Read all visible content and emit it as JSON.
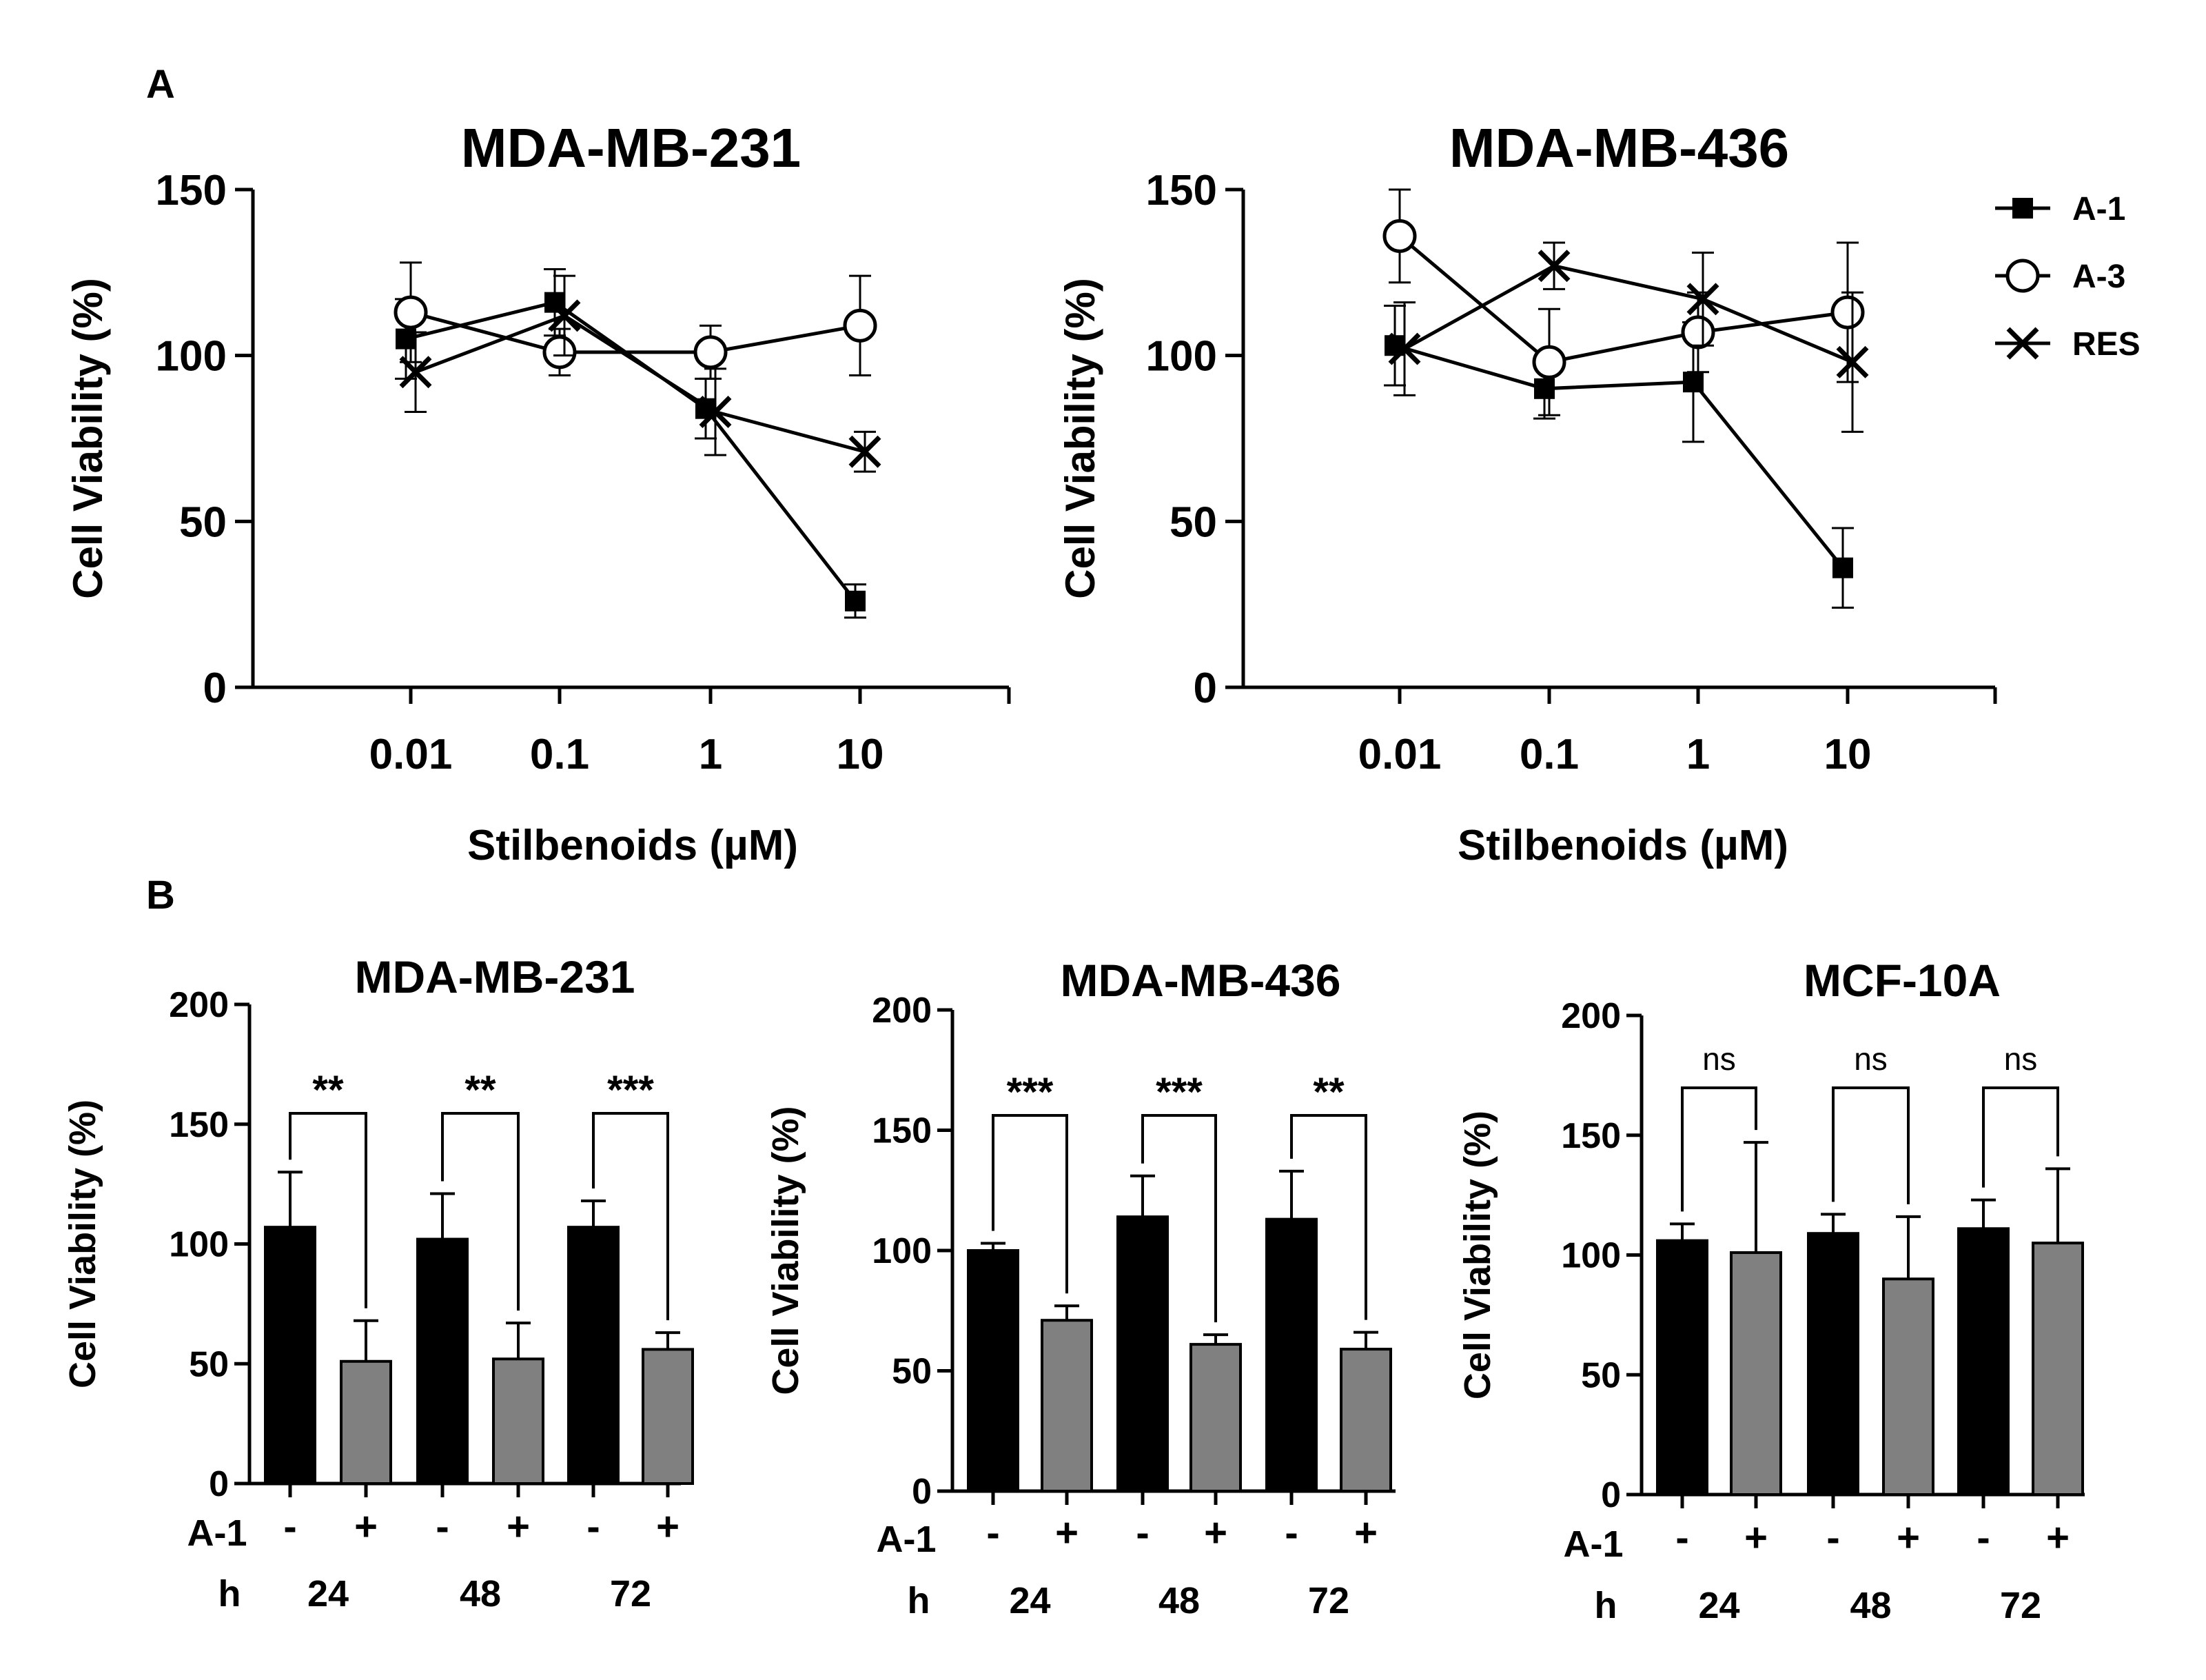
{
  "figure": {
    "panel_labels": [
      "A",
      "B"
    ]
  },
  "colors": {
    "black": "#000000",
    "gray": "#808080",
    "white": "#ffffff"
  },
  "chart_data": [
    {
      "type": "line",
      "panel": "A",
      "title": "MDA-MB-231",
      "xlabel": "Stilbenoids (µM)",
      "ylabel": "Cell Viability (%)",
      "x_scale": "log",
      "categories": [
        "0.01",
        "0.1",
        "1",
        "10"
      ],
      "ylim": [
        0,
        150
      ],
      "yticks": [
        0,
        50,
        100,
        150
      ],
      "series": [
        {
          "name": "A-1",
          "marker": "square",
          "values": [
            105,
            116,
            84,
            26
          ],
          "errors": [
            12,
            10,
            9,
            5
          ]
        },
        {
          "name": "A-3",
          "marker": "circle",
          "values": [
            113,
            101,
            101,
            109
          ],
          "errors": [
            15,
            7,
            8,
            15
          ]
        },
        {
          "name": "RES",
          "marker": "x",
          "values": [
            95,
            112,
            83,
            71
          ],
          "errors": [
            12,
            12,
            13,
            6
          ]
        }
      ]
    },
    {
      "type": "line",
      "panel": "A",
      "title": "MDA-MB-436",
      "xlabel": "Stilbenoids (µM)",
      "ylabel": "Cell Viability (%)",
      "x_scale": "log",
      "categories": [
        "0.01",
        "0.1",
        "1",
        "10"
      ],
      "ylim": [
        0,
        150
      ],
      "yticks": [
        0,
        50,
        100,
        150
      ],
      "legend": {
        "position": "top-right",
        "entries": [
          "A-1",
          "A-3",
          "RES"
        ]
      },
      "series": [
        {
          "name": "A-1",
          "marker": "square",
          "values": [
            103,
            90,
            92,
            36
          ],
          "errors": [
            12,
            9,
            18,
            12
          ]
        },
        {
          "name": "A-3",
          "marker": "circle",
          "values": [
            136,
            98,
            107,
            113
          ],
          "errors": [
            14,
            16,
            12,
            21
          ]
        },
        {
          "name": "RES",
          "marker": "x",
          "values": [
            102,
            127,
            117,
            98
          ],
          "errors": [
            14,
            7,
            14,
            21
          ]
        }
      ]
    },
    {
      "type": "bar",
      "panel": "B",
      "title": "MDA-MB-231",
      "ylabel": "Cell Viability (%)",
      "ylim": [
        0,
        200
      ],
      "yticks": [
        0,
        50,
        100,
        150,
        200
      ],
      "row_labels": [
        "A-1",
        "h"
      ],
      "treatment": [
        "-",
        "+",
        "-",
        "+",
        "-",
        "+"
      ],
      "hours": [
        "24",
        "48",
        "72"
      ],
      "values": [
        107,
        51,
        102,
        52,
        107,
        56
      ],
      "errors": [
        23,
        17,
        19,
        15,
        11,
        7
      ],
      "significance": [
        "**",
        "**",
        "***"
      ]
    },
    {
      "type": "bar",
      "panel": "B",
      "title": "MDA-MB-436",
      "ylabel": "Cell Viability (%)",
      "ylim": [
        0,
        200
      ],
      "yticks": [
        0,
        50,
        100,
        150,
        200
      ],
      "row_labels": [
        "A-1",
        "h"
      ],
      "treatment": [
        "-",
        "+",
        "-",
        "+",
        "-",
        "+"
      ],
      "hours": [
        "24",
        "48",
        "72"
      ],
      "values": [
        100,
        71,
        114,
        61,
        113,
        59
      ],
      "errors": [
        3,
        6,
        17,
        4,
        20,
        7
      ],
      "significance": [
        "***",
        "***",
        "**"
      ]
    },
    {
      "type": "bar",
      "panel": "B",
      "title": "MCF-10A",
      "ylabel": "Cell Viability (%)",
      "ylim": [
        0,
        200
      ],
      "yticks": [
        0,
        50,
        100,
        150,
        200
      ],
      "row_labels": [
        "A-1",
        "h"
      ],
      "treatment": [
        "-",
        "+",
        "-",
        "+",
        "-",
        "+"
      ],
      "hours": [
        "24",
        "48",
        "72"
      ],
      "values": [
        106,
        101,
        109,
        90,
        111,
        105
      ],
      "errors": [
        7,
        46,
        8,
        26,
        12,
        31
      ],
      "significance": [
        "ns",
        "ns",
        "ns"
      ]
    }
  ]
}
